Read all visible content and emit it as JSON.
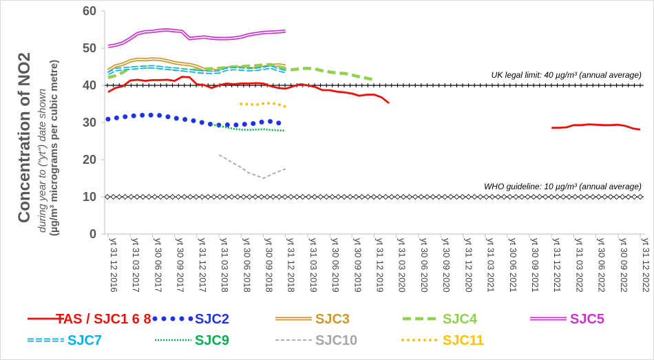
{
  "chart_data": {
    "type": "line",
    "ylabel": {
      "main": "Concentration of NO2",
      "sub1": "during year to (\"yt\") date shown",
      "sub2": "(µg/m³ micrograms per cubic metre)"
    },
    "ylim": [
      0,
      60
    ],
    "yticks": [
      0,
      10,
      20,
      30,
      40,
      50,
      60
    ],
    "categories": [
      "yt 31 12 2016",
      "yt 31 03 2017",
      "yt 30 06 2017",
      "yt 30 09 2017",
      "yt 31 12 2017",
      "yt 31 03 2018",
      "yt 30 06 2018",
      "yt 30 09 2018",
      "yt 31 12 2018",
      "yt 31 03 2019",
      "yt 30 06 2019",
      "yt 30 09 2019",
      "yt 31 12 2019",
      "yt 31 03 2020",
      "yt 30 06 2020",
      "yt 30 09 2020",
      "yt 31 12 2020",
      "yt 31 03 2021",
      "yt 30 06 2021",
      "yt 30 09 2021",
      "yt 31 12 2021",
      "yt 31 03 2022",
      "yt 30 06 2022",
      "yt 30 09 2022",
      "yt 31 12 2022"
    ],
    "grid": false,
    "legend_position": "bottom",
    "reference_lines": [
      {
        "value": 40,
        "label": "UK legal limit:  40 µg/m³ (annual average)"
      },
      {
        "value": 10,
        "label": "WHO guideline:  10 µg/m³ (annual average)"
      }
    ],
    "series": [
      {
        "name": "TAS / SJC1 6 8",
        "color": "#e8120c",
        "style": "solid",
        "x": [
          0,
          0.33,
          0.67,
          1,
          1.33,
          1.67,
          2,
          2.33,
          2.67,
          3,
          3.33,
          3.67,
          4,
          4.33,
          4.67,
          5,
          5.33,
          5.67,
          6,
          6.33,
          6.67,
          7,
          7.33,
          7.67,
          8,
          8.33,
          8.67,
          9,
          9.33,
          9.67,
          10,
          10.33,
          10.67,
          11,
          11.33,
          11.67,
          12,
          12.33,
          12.67,
          13,
          20,
          20.33,
          20.67,
          21,
          21.33,
          21.67,
          22,
          22.33,
          22.67,
          23,
          23.33,
          23.67,
          24
        ],
        "y": [
          38.2,
          39.3,
          39.8,
          41.3,
          41.5,
          41.2,
          41.4,
          41.4,
          41.5,
          41.2,
          42.3,
          42.2,
          40.3,
          40.1,
          39.3,
          40,
          40.5,
          40.3,
          40.5,
          40.5,
          40.6,
          40.5,
          39.8,
          39.3,
          39.1,
          39.7,
          40.3,
          40,
          39.6,
          38.7,
          38.7,
          38.3,
          38.1,
          37.8,
          37.2,
          37.5,
          37.5,
          36.8,
          35.2,
          null,
          28.6,
          28.6,
          28.7,
          29.3,
          29.3,
          29.5,
          29.4,
          29.3,
          29.3,
          29.4,
          29.1,
          28.4,
          28.1
        ]
      },
      {
        "name": "SJC2",
        "color": "#1f33e6",
        "style": "dots",
        "x": [
          0,
          0.33,
          0.67,
          1,
          1.33,
          1.67,
          2,
          2.33,
          2.67,
          3,
          3.33,
          3.67,
          4,
          4.33,
          4.67,
          5,
          5.33,
          5.67,
          6,
          6.33,
          6.67,
          7,
          7.33,
          7.67,
          8
        ],
        "y": [
          30.9,
          31.2,
          31.5,
          31.7,
          31.9,
          32,
          32,
          31.9,
          31.6,
          31.2,
          30.9,
          30.7,
          30.3,
          29.9,
          29.5,
          29.3,
          29.4,
          29.3,
          29.5,
          29.6,
          29.8,
          30.2,
          30.3,
          29.9,
          29.4
        ]
      },
      {
        "name": "SJC3",
        "color": "#c99a2a",
        "style": "double",
        "x": [
          0,
          0.33,
          0.67,
          1,
          1.33,
          1.67,
          2,
          2.33,
          2.67,
          3,
          3.33,
          3.67,
          4,
          4.33,
          4.67,
          5,
          5.33,
          5.67,
          6,
          6.33,
          6.67,
          7,
          7.33,
          7.67,
          8
        ],
        "y": [
          44,
          45.2,
          45.7,
          46.6,
          47,
          46.9,
          47.1,
          47,
          46.6,
          46.1,
          45.8,
          45.6,
          45.1,
          44.3,
          44.1,
          43.8,
          44.6,
          44.8,
          44.7,
          44.5,
          44.4,
          44.8,
          45.3,
          45.5,
          45.2
        ]
      },
      {
        "name": "SJC4",
        "color": "#92d050",
        "style": "dashed",
        "x": [
          0,
          0.33,
          0.67,
          1,
          1.33,
          1.67,
          2,
          2.33,
          2.67,
          3,
          3.33,
          3.67,
          4,
          4.33,
          4.67,
          5,
          5.33,
          5.67,
          6,
          6.33,
          6.67,
          7,
          7.33,
          7.67,
          8,
          8.33,
          8.67,
          9,
          9.33,
          9.67,
          10,
          10.33,
          10.67,
          11,
          11.33,
          11.67,
          12
        ],
        "y": [
          42.1,
          42.6,
          43.5,
          44.7,
          44.8,
          44.9,
          44.9,
          44.8,
          44.6,
          44.3,
          44.1,
          44,
          44.2,
          44.4,
          44.5,
          44.6,
          44.8,
          45,
          45.1,
          45.2,
          45.3,
          45.5,
          45.6,
          45.1,
          44.4,
          44.2,
          44.5,
          44.6,
          44.4,
          43.9,
          43.6,
          43.3,
          43.2,
          42.8,
          42.3,
          41.9,
          41.5
        ]
      },
      {
        "name": "SJC5",
        "color": "#cc33cc",
        "style": "double",
        "x": [
          0,
          0.33,
          0.67,
          1,
          1.33,
          1.67,
          2,
          2.33,
          2.67,
          3,
          3.33,
          3.67,
          4,
          4.33,
          4.67,
          5,
          5.33,
          5.67,
          6,
          6.33,
          6.67,
          7,
          7.33,
          7.67,
          8
        ],
        "y": [
          50.5,
          50.8,
          51.4,
          52.6,
          53.9,
          54.4,
          54.5,
          54.8,
          54.9,
          54.7,
          54.5,
          52.6,
          52.8,
          53,
          52.7,
          52.6,
          52.6,
          52.7,
          53,
          53.6,
          53.9,
          54.2,
          54.3,
          54.4,
          54.6
        ]
      },
      {
        "name": "SJC7",
        "color": "#00b0f0",
        "style": "double-dashed",
        "x": [
          0,
          0.33,
          0.67,
          1,
          1.33,
          1.67,
          2,
          2.33,
          2.67,
          3,
          3.33,
          3.67,
          4,
          4.33,
          4.67,
          5,
          5.33,
          5.67,
          6,
          6.33,
          6.67,
          7,
          7.33,
          7.67,
          8
        ],
        "y": [
          43.2,
          44.2,
          44.5,
          44.6,
          44.8,
          44.9,
          45,
          44.8,
          44.6,
          44.4,
          44.2,
          44,
          43.7,
          43.6,
          43.5,
          43.6,
          44.3,
          44.5,
          44.4,
          44.2,
          44.3,
          44.6,
          44.9,
          44.2,
          43.7
        ]
      },
      {
        "name": "SJC9",
        "color": "#00b050",
        "style": "dotted-fine",
        "x": [
          4.67,
          5,
          5.33,
          5.67,
          6,
          6.33,
          6.67,
          7,
          7.33,
          7.67,
          8
        ],
        "y": [
          29.5,
          29.1,
          28.7,
          28.3,
          28.1,
          28,
          28.1,
          28.2,
          28,
          27.9,
          27.8
        ]
      },
      {
        "name": "SJC10",
        "color": "#a6a6a6",
        "style": "dashed-fine",
        "x": [
          5,
          5.33,
          5.67,
          6,
          6.33,
          6.67,
          7,
          7.33,
          7.67,
          8
        ],
        "y": [
          21.3,
          20.2,
          19,
          17.9,
          16.5,
          15.8,
          15,
          15.9,
          16.8,
          17.5
        ]
      },
      {
        "name": "SJC11",
        "color": "#ffc000",
        "style": "dots-small",
        "x": [
          6,
          6.33,
          6.67,
          7,
          7.33,
          7.67,
          8
        ],
        "y": [
          35,
          34.9,
          34.8,
          35.1,
          35.2,
          34.9,
          34.3
        ]
      }
    ]
  }
}
